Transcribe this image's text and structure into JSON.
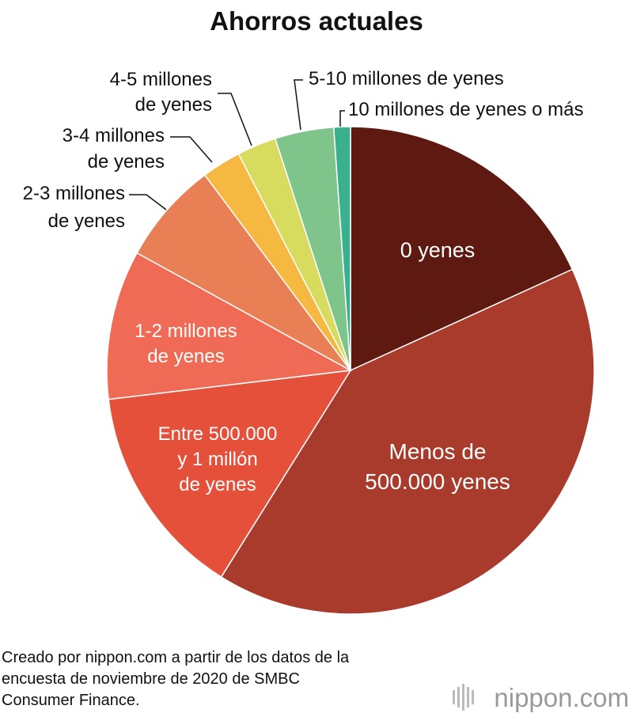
{
  "chart_data": {
    "type": "pie",
    "title": "Ahorros actuales",
    "categories": [
      "0 yenes",
      "Menos de\n500.000 yenes",
      "Entre 500.000\ny 1 millón\nde yenes",
      "1-2 millones\nde yenes",
      "2-3 millones\nde yenes",
      "3-4 millones\nde yenes",
      "4-5 millones\nde yenes",
      "5-10 millones de yenes",
      "10 millones de yenes o más"
    ],
    "values": [
      18.2,
      40.7,
      14.2,
      9.9,
      6.8,
      2.6,
      2.6,
      3.9,
      1.1
    ],
    "colors": [
      "#5e1a10",
      "#a83b2c",
      "#e4503a",
      "#f06b55",
      "#e87f55",
      "#f5b942",
      "#d7dc5f",
      "#7fc48a",
      "#3bb08e"
    ],
    "source": [
      "Creado por nippon.com a partir de los datos de la",
      "encuesta de noviembre de 2020 de SMBC",
      "Consumer Finance."
    ],
    "logo": "nippon.com"
  }
}
